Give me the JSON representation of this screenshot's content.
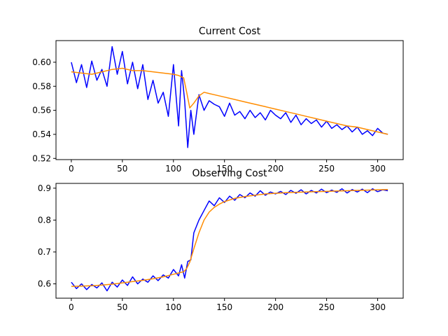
{
  "chart_data": [
    {
      "type": "line",
      "title": "Current Cost",
      "xlabel": "",
      "ylabel": "",
      "xlim": [
        -15,
        325
      ],
      "ylim": [
        0.519,
        0.618
      ],
      "xticks": [
        0,
        50,
        100,
        150,
        200,
        250,
        300
      ],
      "yticks": [
        0.52,
        0.54,
        0.56,
        0.58,
        0.6
      ],
      "ytick_labels": [
        "0.52",
        "0.54",
        "0.56",
        "0.58",
        "0.60"
      ],
      "grid": false,
      "legend": "none",
      "series": [
        {
          "color": "#0000ff",
          "x": [
            0,
            5,
            10,
            15,
            20,
            25,
            30,
            35,
            40,
            45,
            50,
            55,
            60,
            65,
            70,
            75,
            80,
            85,
            90,
            95,
            100,
            105,
            108,
            111,
            114,
            117,
            120,
            125,
            130,
            135,
            140,
            145,
            150,
            155,
            160,
            165,
            170,
            175,
            180,
            185,
            190,
            195,
            200,
            205,
            210,
            215,
            220,
            225,
            230,
            235,
            240,
            245,
            250,
            255,
            260,
            265,
            270,
            275,
            280,
            285,
            290,
            295,
            300,
            305,
            310
          ],
          "values": [
            0.6,
            0.583,
            0.598,
            0.579,
            0.601,
            0.585,
            0.594,
            0.58,
            0.613,
            0.59,
            0.609,
            0.582,
            0.6,
            0.578,
            0.598,
            0.569,
            0.585,
            0.566,
            0.575,
            0.555,
            0.598,
            0.547,
            0.593,
            0.568,
            0.529,
            0.56,
            0.54,
            0.573,
            0.56,
            0.568,
            0.565,
            0.563,
            0.555,
            0.566,
            0.556,
            0.559,
            0.553,
            0.56,
            0.554,
            0.558,
            0.552,
            0.56,
            0.556,
            0.553,
            0.558,
            0.55,
            0.556,
            0.548,
            0.553,
            0.549,
            0.552,
            0.546,
            0.551,
            0.545,
            0.548,
            0.544,
            0.547,
            0.542,
            0.546,
            0.54,
            0.543,
            0.539,
            0.545,
            0.541,
            0.54
          ]
        },
        {
          "color": "#ff8c00",
          "x": [
            0,
            10,
            20,
            30,
            40,
            50,
            60,
            70,
            80,
            90,
            100,
            105,
            110,
            113,
            116,
            120,
            125,
            130,
            135,
            140,
            150,
            160,
            170,
            180,
            190,
            200,
            210,
            220,
            230,
            240,
            250,
            260,
            270,
            280,
            290,
            300,
            310
          ],
          "values": [
            0.592,
            0.591,
            0.59,
            0.592,
            0.594,
            0.595,
            0.593,
            0.593,
            0.592,
            0.591,
            0.59,
            0.589,
            0.587,
            0.575,
            0.562,
            0.566,
            0.572,
            0.575,
            0.574,
            0.573,
            0.571,
            0.569,
            0.567,
            0.565,
            0.563,
            0.561,
            0.559,
            0.557,
            0.555,
            0.553,
            0.551,
            0.549,
            0.547,
            0.546,
            0.544,
            0.542,
            0.54
          ]
        }
      ]
    },
    {
      "type": "line",
      "title": "Observing Cost",
      "xlabel": "",
      "ylabel": "",
      "xlim": [
        -15,
        325
      ],
      "ylim": [
        0.555,
        0.915
      ],
      "xticks": [
        0,
        50,
        100,
        150,
        200,
        250,
        300
      ],
      "yticks": [
        0.6,
        0.7,
        0.8,
        0.9
      ],
      "ytick_labels": [
        "0.6",
        "0.7",
        "0.8",
        "0.9"
      ],
      "grid": false,
      "legend": "none",
      "series": [
        {
          "color": "#0000ff",
          "x": [
            0,
            5,
            10,
            15,
            20,
            25,
            30,
            35,
            40,
            45,
            50,
            55,
            60,
            65,
            70,
            75,
            80,
            85,
            90,
            95,
            100,
            105,
            108,
            111,
            114,
            117,
            120,
            125,
            130,
            135,
            140,
            145,
            150,
            155,
            160,
            165,
            170,
            175,
            180,
            185,
            190,
            195,
            200,
            205,
            210,
            215,
            220,
            225,
            230,
            235,
            240,
            245,
            250,
            255,
            260,
            265,
            270,
            275,
            280,
            285,
            290,
            295,
            300,
            305,
            310
          ],
          "values": [
            0.605,
            0.585,
            0.6,
            0.582,
            0.598,
            0.587,
            0.603,
            0.578,
            0.605,
            0.59,
            0.612,
            0.595,
            0.622,
            0.6,
            0.615,
            0.605,
            0.625,
            0.61,
            0.628,
            0.618,
            0.645,
            0.625,
            0.66,
            0.618,
            0.67,
            0.675,
            0.76,
            0.8,
            0.83,
            0.86,
            0.845,
            0.87,
            0.855,
            0.875,
            0.862,
            0.88,
            0.87,
            0.885,
            0.875,
            0.892,
            0.878,
            0.888,
            0.882,
            0.89,
            0.88,
            0.893,
            0.884,
            0.895,
            0.882,
            0.893,
            0.885,
            0.897,
            0.886,
            0.894,
            0.887,
            0.898,
            0.885,
            0.896,
            0.888,
            0.897,
            0.886,
            0.898,
            0.889,
            0.895,
            0.892
          ]
        },
        {
          "color": "#ff8c00",
          "x": [
            0,
            10,
            20,
            30,
            40,
            50,
            60,
            70,
            80,
            90,
            100,
            105,
            110,
            113,
            116,
            120,
            125,
            130,
            135,
            140,
            145,
            150,
            160,
            170,
            180,
            190,
            200,
            210,
            220,
            230,
            240,
            250,
            260,
            270,
            280,
            290,
            300,
            310
          ],
          "values": [
            0.592,
            0.593,
            0.594,
            0.596,
            0.599,
            0.603,
            0.607,
            0.611,
            0.616,
            0.622,
            0.63,
            0.634,
            0.638,
            0.648,
            0.668,
            0.71,
            0.76,
            0.8,
            0.825,
            0.84,
            0.85,
            0.858,
            0.868,
            0.874,
            0.878,
            0.882,
            0.884,
            0.886,
            0.887,
            0.888,
            0.889,
            0.89,
            0.891,
            0.892,
            0.893,
            0.894,
            0.895,
            0.896
          ]
        }
      ]
    }
  ]
}
